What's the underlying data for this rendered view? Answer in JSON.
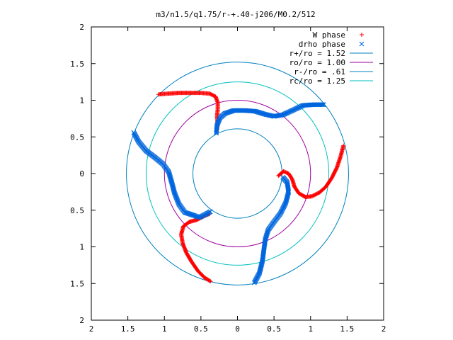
{
  "chart_data": {
    "type": "scatter",
    "title": "m3/n1.5/q1.75/r-+.40-j206/M0.2/512",
    "xlim": [
      -2,
      2
    ],
    "ylim": [
      -2,
      2
    ],
    "x_ticks": [
      -2,
      -1.5,
      -1,
      -0.5,
      0,
      0.5,
      1,
      1.5,
      2
    ],
    "y_ticks": [
      -2,
      -1.5,
      -1,
      -0.5,
      0,
      0.5,
      1,
      1.5,
      2
    ],
    "x_tick_labels": [
      "2",
      "1.5",
      "1",
      "0.5",
      "0",
      "0.5",
      "1",
      "1.5",
      "2"
    ],
    "y_tick_labels": [
      "2",
      "1.5",
      "1",
      "0.5",
      "0",
      "0.5",
      "1",
      "1.5",
      "2"
    ],
    "grid": false,
    "legend_position": "top-right",
    "series": [
      {
        "name": "W phase",
        "marker": "+",
        "color": "#ff0000",
        "points": [
          [
            -1.08,
            1.08
          ],
          [
            -0.95,
            1.09
          ],
          [
            -0.8,
            1.1
          ],
          [
            -0.65,
            1.1
          ],
          [
            -0.5,
            1.1
          ],
          [
            -0.38,
            1.09
          ],
          [
            -0.3,
            1.05
          ],
          [
            -0.27,
            0.97
          ],
          [
            -0.27,
            0.88
          ],
          [
            -0.28,
            0.78
          ],
          [
            -0.27,
            0.68
          ],
          [
            -0.28,
            0.6
          ],
          [
            1.45,
            0.38
          ],
          [
            1.41,
            0.23
          ],
          [
            1.36,
            0.08
          ],
          [
            1.29,
            -0.06
          ],
          [
            1.21,
            -0.18
          ],
          [
            1.12,
            -0.26
          ],
          [
            1.02,
            -0.31
          ],
          [
            0.93,
            -0.32
          ],
          [
            0.84,
            -0.27
          ],
          [
            0.78,
            -0.18
          ],
          [
            0.75,
            -0.08
          ],
          [
            0.7,
            0.0
          ],
          [
            0.63,
            0.03
          ],
          [
            0.56,
            -0.03
          ],
          [
            -0.37,
            -1.47
          ],
          [
            -0.45,
            -1.42
          ],
          [
            -0.54,
            -1.33
          ],
          [
            -0.63,
            -1.2
          ],
          [
            -0.7,
            -1.08
          ],
          [
            -0.75,
            -0.95
          ],
          [
            -0.77,
            -0.83
          ],
          [
            -0.74,
            -0.72
          ],
          [
            -0.66,
            -0.66
          ],
          [
            -0.55,
            -0.63
          ],
          [
            -0.46,
            -0.58
          ],
          [
            -0.38,
            -0.55
          ]
        ]
      },
      {
        "name": "drho phase",
        "marker": "x",
        "color": "#0066dd",
        "points": [
          [
            -0.29,
            0.55
          ],
          [
            -0.28,
            0.66
          ],
          [
            -0.24,
            0.76
          ],
          [
            -0.17,
            0.82
          ],
          [
            -0.05,
            0.86
          ],
          [
            0.1,
            0.86
          ],
          [
            0.24,
            0.85
          ],
          [
            0.37,
            0.81
          ],
          [
            0.5,
            0.78
          ],
          [
            0.62,
            0.8
          ],
          [
            0.75,
            0.86
          ],
          [
            0.9,
            0.93
          ],
          [
            1.05,
            0.94
          ],
          [
            1.18,
            0.94
          ],
          [
            0.62,
            -0.05
          ],
          [
            0.68,
            -0.12
          ],
          [
            0.7,
            -0.25
          ],
          [
            0.66,
            -0.4
          ],
          [
            0.59,
            -0.54
          ],
          [
            0.5,
            -0.66
          ],
          [
            0.42,
            -0.77
          ],
          [
            0.38,
            -0.9
          ],
          [
            0.36,
            -1.05
          ],
          [
            0.34,
            -1.2
          ],
          [
            0.3,
            -1.36
          ],
          [
            0.23,
            -1.49
          ],
          [
            -1.42,
            0.56
          ],
          [
            -1.35,
            0.43
          ],
          [
            -1.25,
            0.31
          ],
          [
            -1.13,
            0.22
          ],
          [
            -1.02,
            0.13
          ],
          [
            -0.94,
            0.02
          ],
          [
            -0.9,
            -0.12
          ],
          [
            -0.86,
            -0.27
          ],
          [
            -0.8,
            -0.42
          ],
          [
            -0.72,
            -0.53
          ],
          [
            -0.6,
            -0.57
          ],
          [
            -0.52,
            -0.6
          ],
          [
            -0.37,
            -0.52
          ]
        ]
      }
    ],
    "circles": [
      {
        "name": "r+/ro = 1.52",
        "radius": 1.52,
        "color": "#0080c0"
      },
      {
        "name": "ro/ro = 1.00",
        "radius": 1.0,
        "color": "#a000a0"
      },
      {
        "name": "r-/ro = .61",
        "radius": 0.61,
        "color": "#0080c0"
      },
      {
        "name": "rc/ro = 1.25",
        "radius": 1.25,
        "color": "#00c0c0"
      }
    ]
  }
}
